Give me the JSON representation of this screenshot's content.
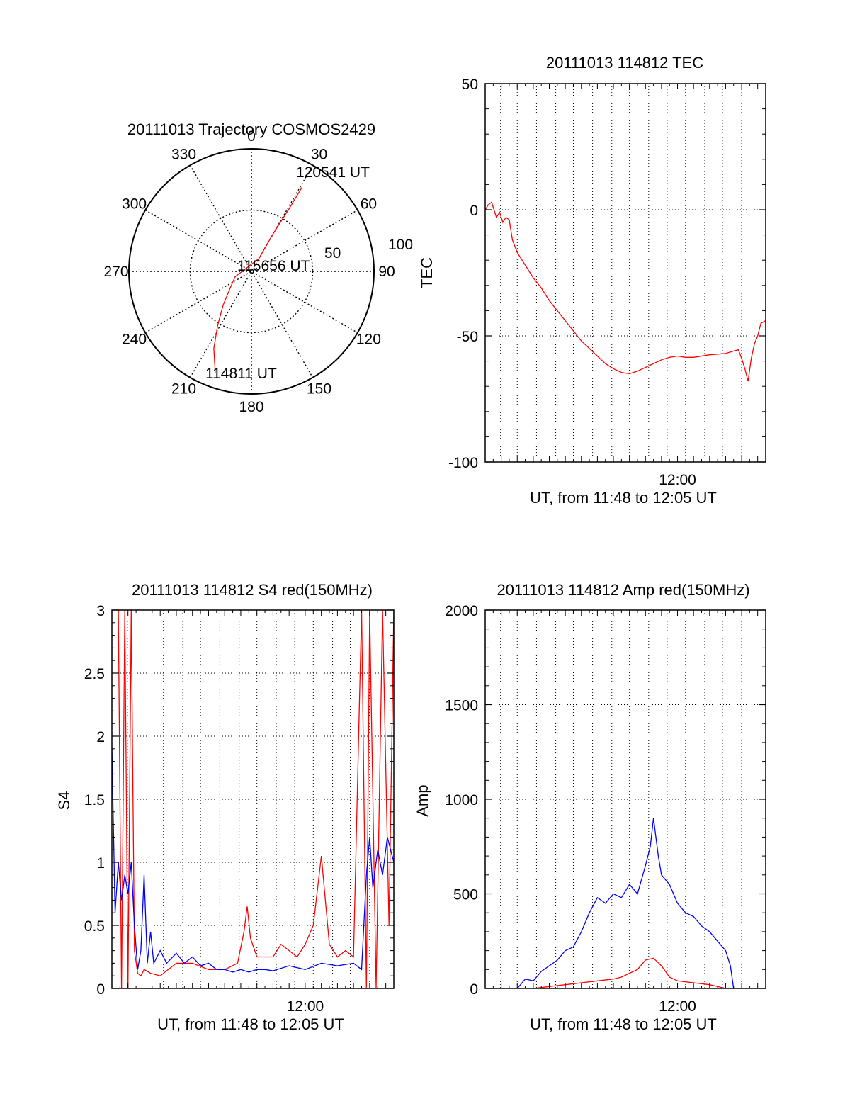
{
  "colors": {
    "red": "#ff0000",
    "blue": "#0000ff",
    "axis": "#000000",
    "grid": "#000000"
  },
  "chart_data": [
    {
      "id": "trajectory",
      "type": "polar",
      "title": "20111013 Trajectory COSMOS2429",
      "azimuth_labels": [
        "0",
        "30",
        "60",
        "90",
        "120",
        "150",
        "180",
        "210",
        "240",
        "270",
        "300",
        "330"
      ],
      "ring_labels": [
        "50",
        "100"
      ],
      "annotations": [
        "120541 UT",
        "115656 UT",
        "114811 UT"
      ],
      "series": [
        {
          "color": "red",
          "points_az_zen": [
            [
              199.6,
              88
            ],
            [
              206,
              70
            ],
            [
              212,
              52
            ],
            [
              220,
              36
            ],
            [
              232,
              22
            ],
            [
              252,
              14
            ],
            [
              30,
              12
            ],
            [
              30,
              36
            ],
            [
              31,
              60
            ],
            [
              31,
              80
            ]
          ]
        }
      ]
    },
    {
      "id": "tec",
      "type": "line",
      "title": "20111013 114812 TEC",
      "xlabel": "UT, from 11:48 to 12:05 UT",
      "ylabel": "TEC",
      "xlim": [
        0,
        17.5
      ],
      "ylim": [
        -100,
        50
      ],
      "yticks": [
        "-100",
        "-50",
        "0",
        "50"
      ],
      "xticks": [
        {
          "label": "12:00",
          "at": 12
        }
      ],
      "grid": true,
      "series": [
        {
          "color": "red",
          "x": [
            0,
            0.2,
            0.4,
            0.5,
            0.7,
            0.9,
            1.1,
            1.3,
            1.5,
            1.7,
            2.0,
            2.5,
            3.0,
            3.5,
            4.0,
            5.0,
            6.0,
            7.0,
            7.5,
            8.0,
            8.5,
            9.0,
            9.5,
            10.0,
            10.5,
            11.0,
            11.5,
            12.0,
            12.5,
            13.0,
            14.0,
            15.0,
            15.5,
            15.8,
            16.0,
            16.2,
            16.4,
            16.6,
            16.8,
            17.0,
            17.2,
            17.5
          ],
          "y": [
            0,
            2,
            3,
            1,
            -3,
            -1,
            -5,
            -3,
            -4,
            -12,
            -17,
            -22,
            -27,
            -31,
            -36,
            -44,
            -52,
            -58,
            -61,
            -63,
            -64.5,
            -65,
            -64,
            -62.5,
            -61,
            -59.5,
            -58.5,
            -58,
            -58.5,
            -58.5,
            -57.5,
            -57,
            -56,
            -55.5,
            -59,
            -63,
            -68,
            -59,
            -53,
            -50,
            -45,
            -44
          ]
        }
      ]
    },
    {
      "id": "s4",
      "type": "line",
      "title": "20111013 114812 S4 red(150MHz)",
      "xlabel": "UT, from 11:48 to 12:05 UT",
      "ylabel": "S4",
      "xlim": [
        0,
        17.5
      ],
      "ylim": [
        0,
        3
      ],
      "yticks": [
        "0",
        "0.5",
        "1",
        "1.5",
        "2",
        "2.5",
        "3"
      ],
      "xticks": [
        {
          "label": "12:00",
          "at": 12
        }
      ],
      "grid": true,
      "series": [
        {
          "color": "red",
          "x": [
            0.4,
            0.6,
            0.8,
            1.0,
            1.2,
            1.4,
            1.6,
            1.8,
            2.0,
            2.4,
            3.0,
            4.0,
            5.0,
            6.0,
            7.0,
            7.8,
            8.2,
            8.4,
            8.6,
            9.0,
            10.0,
            10.5,
            11.0,
            11.5,
            12.0,
            12.5,
            13.0,
            13.5,
            14.0,
            14.5,
            15.0,
            15.5,
            15.8,
            16.0,
            16.4,
            16.8,
            17.2,
            17.5
          ],
          "y": [
            3,
            0,
            3,
            0,
            3,
            0.3,
            0.12,
            0.1,
            0.15,
            0.12,
            0.1,
            0.2,
            0.2,
            0.15,
            0.15,
            0.2,
            0.45,
            0.65,
            0.4,
            0.25,
            0.25,
            0.35,
            0.3,
            0.25,
            0.35,
            0.5,
            1.05,
            0.35,
            0.25,
            0.3,
            0.25,
            3,
            0,
            3,
            0,
            3,
            0.5,
            3
          ]
        },
        {
          "color": "blue",
          "x": [
            0,
            0.2,
            0.4,
            0.6,
            0.8,
            1.0,
            1.2,
            1.4,
            1.6,
            1.8,
            2.0,
            2.2,
            2.4,
            2.6,
            2.8,
            3.0,
            3.4,
            4.0,
            4.5,
            5.0,
            5.5,
            6.0,
            6.5,
            7.0,
            7.5,
            8.0,
            8.5,
            9.0,
            9.5,
            10.0,
            11.0,
            12.0,
            13.0,
            14.0,
            15.0,
            15.5,
            15.8,
            16.0,
            16.2,
            16.5,
            16.8,
            17.1,
            17.5
          ],
          "y": [
            1.9,
            0.6,
            1.0,
            0.7,
            0.9,
            0.75,
            1.0,
            0.5,
            0.15,
            0.3,
            0.9,
            0.2,
            0.45,
            0.2,
            0.25,
            0.3,
            0.2,
            0.28,
            0.2,
            0.25,
            0.18,
            0.2,
            0.15,
            0.15,
            0.13,
            0.15,
            0.13,
            0.15,
            0.15,
            0.14,
            0.18,
            0.15,
            0.2,
            0.18,
            0.2,
            0.15,
            0.9,
            1.2,
            0.8,
            1.1,
            0.9,
            1.2,
            1.0
          ]
        }
      ]
    },
    {
      "id": "amp",
      "type": "line",
      "title": "20111013 114812 Amp red(150MHz)",
      "xlabel": "UT, from 11:48 to 12:05 UT",
      "ylabel": "Amp",
      "xlim": [
        0,
        17.5
      ],
      "ylim": [
        0,
        2000
      ],
      "yticks": [
        "0",
        "500",
        "1000",
        "1500",
        "2000"
      ],
      "xticks": [
        {
          "label": "12:00",
          "at": 12
        }
      ],
      "grid": true,
      "series": [
        {
          "color": "blue",
          "x": [
            0,
            1.0,
            1.5,
            2.0,
            2.5,
            3.0,
            3.5,
            4.0,
            4.5,
            5.0,
            5.5,
            6.0,
            6.5,
            7.0,
            7.5,
            8.0,
            8.5,
            9.0,
            9.5,
            10.0,
            10.3,
            10.5,
            10.8,
            11.0,
            11.5,
            12.0,
            12.5,
            13.0,
            13.5,
            14.0,
            14.5,
            15.0,
            15.3,
            15.5,
            16.0,
            17.5
          ],
          "y": [
            0,
            0,
            0,
            0,
            50,
            40,
            90,
            120,
            150,
            200,
            220,
            300,
            400,
            480,
            450,
            500,
            480,
            550,
            500,
            650,
            750,
            900,
            700,
            600,
            550,
            450,
            400,
            380,
            330,
            300,
            250,
            200,
            120,
            0,
            0,
            0
          ]
        },
        {
          "color": "red",
          "x": [
            0,
            3.0,
            4.0,
            5.0,
            6.0,
            7.0,
            8.0,
            8.5,
            9.0,
            9.5,
            10.0,
            10.5,
            11.0,
            11.5,
            12.0,
            13.0,
            14.0,
            14.5,
            15.0,
            17.5
          ],
          "y": [
            0,
            0,
            10,
            20,
            30,
            40,
            50,
            60,
            80,
            100,
            150,
            160,
            120,
            60,
            40,
            30,
            20,
            10,
            0,
            0
          ]
        }
      ]
    }
  ]
}
